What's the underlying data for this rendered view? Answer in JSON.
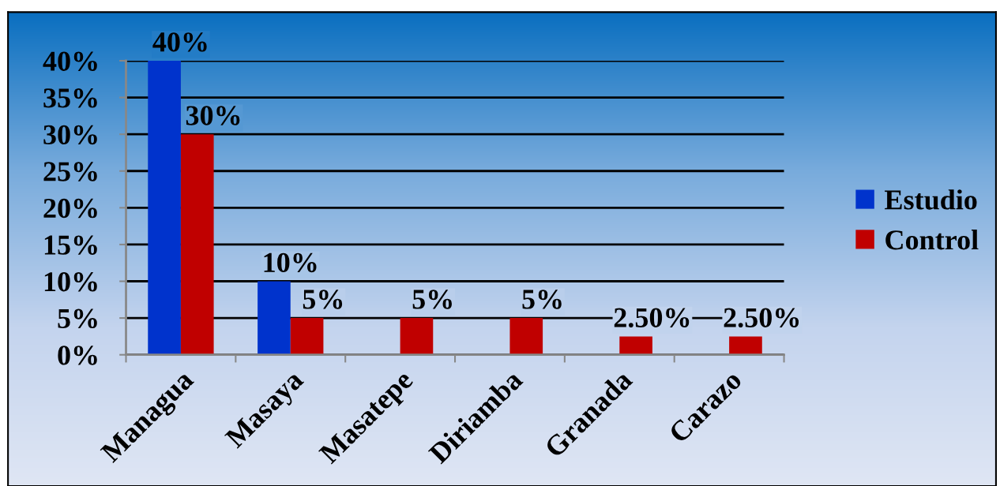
{
  "chart_data": {
    "type": "bar",
    "categories": [
      "Managua",
      "Masaya",
      "Masatepe",
      "Diriamba",
      "Granada",
      "Carazo"
    ],
    "series": [
      {
        "name": "Estudio",
        "color": "#0033cc",
        "values": [
          40,
          10,
          null,
          null,
          null,
          null
        ],
        "value_labels": [
          "40%",
          "10%",
          null,
          null,
          null,
          null
        ]
      },
      {
        "name": "Control",
        "color": "#c00000",
        "values": [
          30,
          5,
          5,
          5,
          2.5,
          2.5
        ],
        "value_labels": [
          "30%",
          "5%",
          "5%",
          "5%",
          "2.50%",
          "2.50%"
        ]
      }
    ],
    "ylim": [
      0,
      40
    ],
    "yticks": [
      {
        "value": 0,
        "label": "0%"
      },
      {
        "value": 5,
        "label": "5%"
      },
      {
        "value": 10,
        "label": "10%"
      },
      {
        "value": 15,
        "label": "15%"
      },
      {
        "value": 20,
        "label": "20%"
      },
      {
        "value": 25,
        "label": "25%"
      },
      {
        "value": 30,
        "label": "30%"
      },
      {
        "value": 35,
        "label": "35%"
      },
      {
        "value": 40,
        "label": "40%"
      }
    ],
    "grid": "y",
    "legend": "right"
  }
}
